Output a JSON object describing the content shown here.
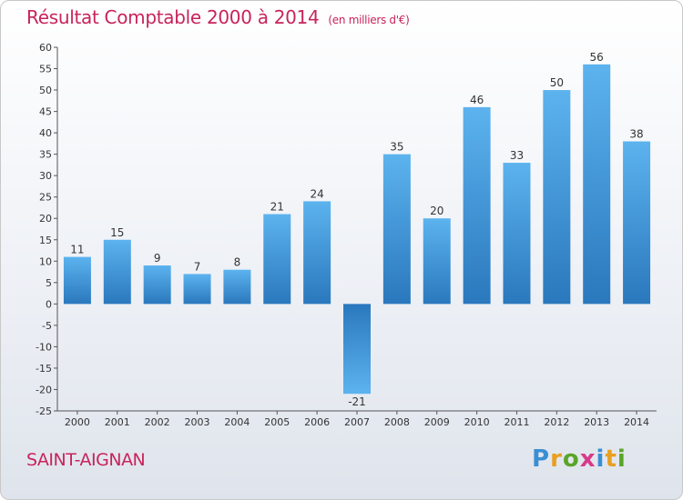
{
  "chart_data": {
    "type": "bar",
    "title": "Résultat Comptable 2000 à 2014",
    "subtitle": "(en milliers d'€)",
    "categories": [
      "2000",
      "2001",
      "2002",
      "2003",
      "2004",
      "2005",
      "2006",
      "2007",
      "2008",
      "2009",
      "2010",
      "2011",
      "2012",
      "2013",
      "2014"
    ],
    "values": [
      11,
      15,
      9,
      7,
      8,
      21,
      24,
      -21,
      35,
      20,
      46,
      33,
      50,
      56,
      38
    ],
    "ylim": [
      -25,
      60
    ],
    "ytick_step": 5,
    "xlabel": "",
    "ylabel": "",
    "grid": false,
    "bar_color": "#3a8fd4"
  },
  "footer": {
    "commune": "SAINT-AIGNAN",
    "brand_letters": [
      "P",
      "r",
      "o",
      "x",
      "i",
      "t",
      "i"
    ],
    "brand_colors": [
      "#3a8fd4",
      "#e8a020",
      "#5aa52a",
      "#d83a8a",
      "#3a8fd4",
      "#e8a020",
      "#5aa52a"
    ]
  }
}
